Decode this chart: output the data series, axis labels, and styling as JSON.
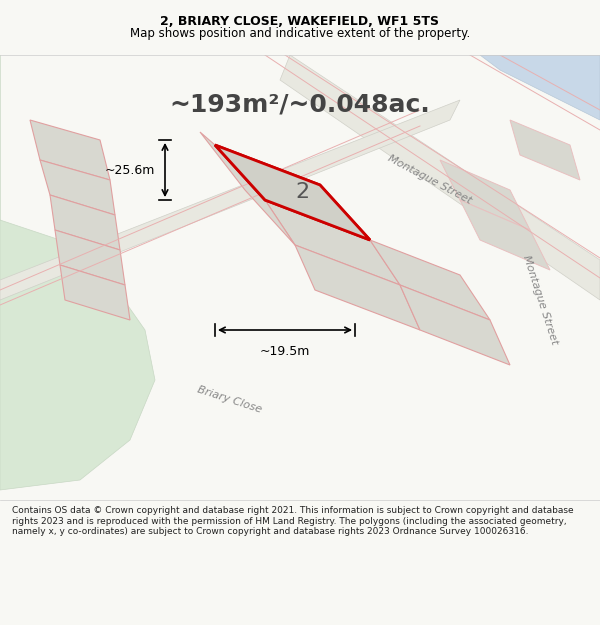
{
  "title_line1": "2, BRIARY CLOSE, WAKEFIELD, WF1 5TS",
  "title_line2": "Map shows position and indicative extent of the property.",
  "area_text": "~193m²/~0.048ac.",
  "label_number": "2",
  "dim_width": "~19.5m",
  "dim_height": "~25.6m",
  "street_label1": "Montague Street",
  "street_label2": "Montague Street",
  "street_label3": "Briary Close",
  "footer_text": "Contains OS data © Crown copyright and database right 2021. This information is subject to Crown copyright and database rights 2023 and is reproduced with the permission of HM Land Registry. The polygons (including the associated geometry, namely x, y co-ordinates) are subject to Crown copyright and database rights 2023 Ordnance Survey 100026316.",
  "bg_color": "#f0f0ea",
  "plot_bg": "#e8e8e0",
  "map_bg": "#f5f5f0",
  "property_fill": "#d0d0c8",
  "property_border": "#cc0000",
  "road_color": "#ffffff",
  "neighbor_fill": "#d8d8d0",
  "neighbor_border": "#e0a0a0",
  "green_fill": "#d8e8d0",
  "blue_fill": "#c8d8e8",
  "title_fontsize": 9,
  "subtitle_fontsize": 8.5,
  "area_fontsize": 18,
  "footer_fontsize": 6.5
}
